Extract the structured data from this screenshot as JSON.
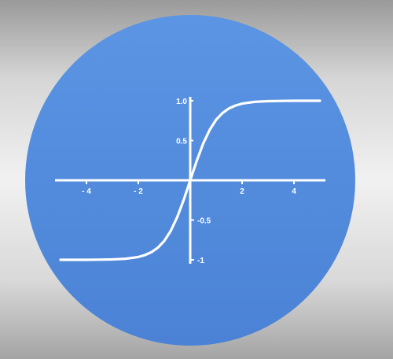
{
  "chart_data": {
    "type": "line",
    "title": "",
    "xlabel": "",
    "ylabel": "",
    "xlim": [
      -5,
      5
    ],
    "ylim": [
      -1,
      1
    ],
    "grid": false,
    "x_ticks": [
      -4,
      -2,
      2,
      4
    ],
    "x_tick_labels": [
      "- 4",
      "- 2",
      "2",
      "4"
    ],
    "y_ticks": [
      1.0,
      0.5,
      -0.5,
      -1
    ],
    "y_tick_labels": [
      "1.0",
      "0.5",
      "-0.5",
      "-1"
    ],
    "series": [
      {
        "x": [
          -5,
          -4.5,
          -4,
          -3.5,
          -3,
          -2.5,
          -2,
          -1.75,
          -1.5,
          -1.25,
          -1,
          -0.75,
          -0.5,
          -0.25,
          0,
          0.25,
          0.5,
          0.75,
          1,
          1.25,
          1.5,
          1.75,
          2,
          2.5,
          3,
          3.5,
          4,
          4.5,
          5
        ],
        "y": [
          -1.0,
          -1.0,
          -1.0,
          -0.998,
          -0.995,
          -0.987,
          -0.964,
          -0.941,
          -0.905,
          -0.848,
          -0.762,
          -0.635,
          -0.462,
          -0.245,
          0.0,
          0.245,
          0.462,
          0.635,
          0.762,
          0.848,
          0.905,
          0.941,
          0.964,
          0.987,
          0.995,
          0.998,
          1.0,
          1.0,
          1.0
        ]
      }
    ]
  },
  "colors": {
    "circle_top": "#5b95e3",
    "circle_bottom": "#4b82d6",
    "axis": "#ffffff",
    "curve": "#ffffff"
  }
}
